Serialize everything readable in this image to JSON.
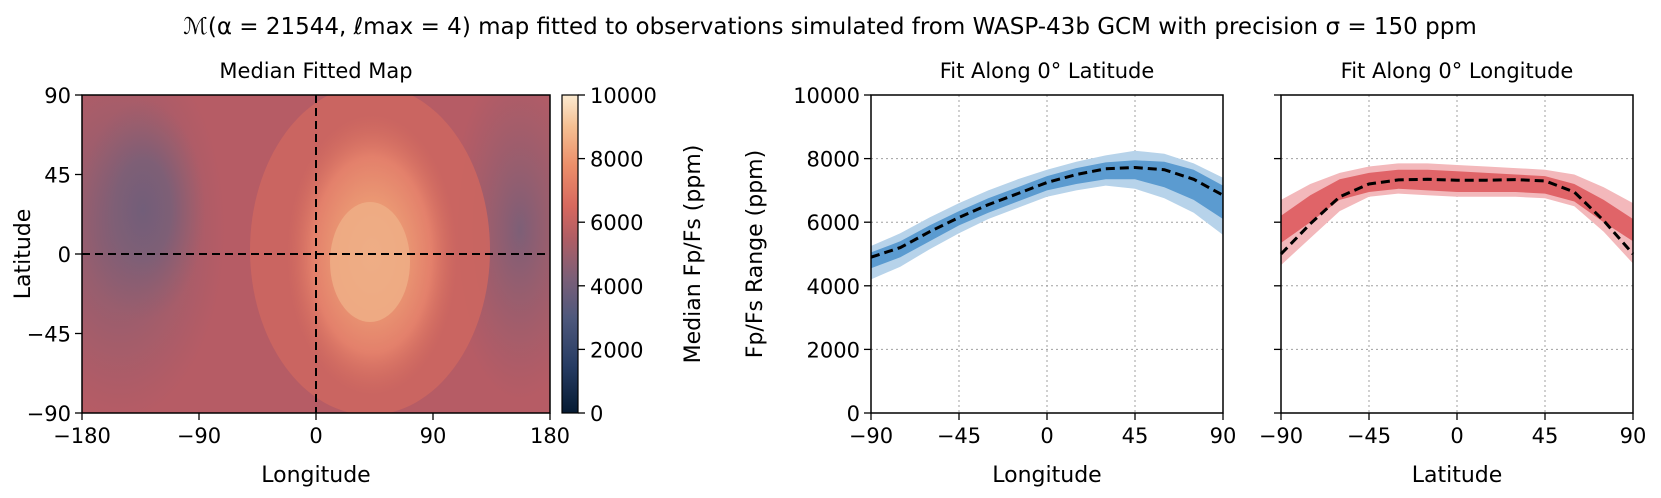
{
  "figure": {
    "title": "ℳ(α = 21544, ℓmax = 4) map fitted to observations simulated from WASP-43b GCM with precision σ = 150 ppm"
  },
  "chart_data": [
    {
      "type": "heatmap",
      "title": "Median Fitted Map",
      "xlabel": "Longitude",
      "ylabel": "Latitude",
      "xlim": [
        -180,
        180
      ],
      "ylim": [
        -90,
        90
      ],
      "xticks": [
        "−180",
        "−90",
        "0",
        "90",
        "180"
      ],
      "yticks": [
        "−90",
        "−45",
        "0",
        "45",
        "90"
      ],
      "hotspot": {
        "lon": 40,
        "lat": -5,
        "value": 7600
      },
      "coldspot": {
        "lon": -140,
        "lat": 35,
        "value": 4300
      },
      "guide_lines": {
        "lon": 0,
        "lat": 0
      },
      "colorbar": {
        "label": "Median Fp/Fs (ppm)",
        "range": [
          0,
          10000
        ],
        "ticks": [
          "0",
          "2000",
          "4000",
          "6000",
          "8000",
          "10000"
        ]
      }
    },
    {
      "type": "area",
      "title": "Fit Along 0° Latitude",
      "xlabel": "Longitude",
      "ylabel": "Fp/Fs Range (ppm)",
      "xlim": [
        -90,
        90
      ],
      "ylim": [
        0,
        10000
      ],
      "xticks": [
        "−90",
        "−45",
        "0",
        "45",
        "90"
      ],
      "yticks": [
        "0",
        "2000",
        "4000",
        "6000",
        "8000",
        "10000"
      ],
      "grid": true,
      "colors": {
        "inner": "#5b9bd0",
        "outer": "#b7d3ea"
      },
      "x": [
        -90,
        -75,
        -60,
        -45,
        -30,
        -15,
        0,
        15,
        30,
        45,
        60,
        75,
        90
      ],
      "median": [
        4900,
        5200,
        5700,
        6150,
        6550,
        6900,
        7250,
        7500,
        7680,
        7720,
        7650,
        7350,
        6850
      ],
      "inner_lower": [
        4550,
        4900,
        5400,
        5900,
        6300,
        6650,
        7000,
        7200,
        7350,
        7350,
        7100,
        6700,
        6100
      ],
      "inner_upper": [
        5050,
        5400,
        5900,
        6350,
        6750,
        7100,
        7450,
        7700,
        7880,
        7950,
        7900,
        7650,
        7150
      ],
      "outer_lower": [
        4200,
        4600,
        5150,
        5650,
        6100,
        6450,
        6800,
        7000,
        7150,
        7050,
        6750,
        6300,
        5600
      ],
      "outer_upper": [
        5250,
        5650,
        6150,
        6600,
        7000,
        7350,
        7650,
        7900,
        8100,
        8250,
        8150,
        7850,
        7400
      ]
    },
    {
      "type": "area",
      "title": "Fit Along 0° Longitude",
      "xlabel": "Latitude",
      "xlim": [
        -90,
        90
      ],
      "ylim": [
        0,
        10000
      ],
      "xticks": [
        "−90",
        "−45",
        "0",
        "45",
        "90"
      ],
      "grid": true,
      "colors": {
        "inner": "#e06468",
        "outer": "#f3b8bb"
      },
      "x": [
        -90,
        -75,
        -60,
        -45,
        -30,
        -15,
        0,
        15,
        30,
        45,
        60,
        75,
        90
      ],
      "median": [
        5000,
        5950,
        6800,
        7200,
        7330,
        7350,
        7320,
        7320,
        7340,
        7300,
        6950,
        6050,
        5000
      ],
      "inner_lower": [
        5350,
        6000,
        6700,
        6950,
        7050,
        7000,
        6950,
        6950,
        6950,
        6900,
        6650,
        6000,
        5400
      ],
      "inner_upper": [
        6200,
        6850,
        7350,
        7550,
        7650,
        7650,
        7600,
        7550,
        7500,
        7450,
        7200,
        6700,
        6100
      ],
      "outer_lower": [
        4650,
        5500,
        6350,
        6800,
        6900,
        6850,
        6800,
        6800,
        6800,
        6750,
        6500,
        5700,
        4700
      ],
      "outer_upper": [
        6700,
        7200,
        7550,
        7750,
        7850,
        7850,
        7800,
        7750,
        7700,
        7650,
        7500,
        7100,
        6600
      ]
    }
  ]
}
